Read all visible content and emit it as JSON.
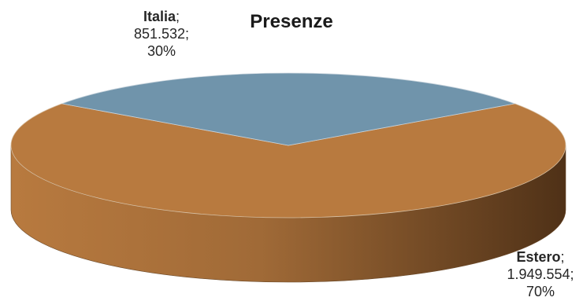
{
  "chart_data": {
    "type": "pie",
    "title": "Presenze",
    "slices": [
      {
        "name": "Italia",
        "value": "851.532",
        "percent": "30%",
        "share": 0.304,
        "color": "#7094ab"
      },
      {
        "name": "Estero",
        "value": "1.949.554",
        "percent": "70%",
        "share": 0.696,
        "color": "#b87a3f"
      }
    ],
    "side_colors": {
      "light": "#b87a3f",
      "dark": "#4f3117"
    }
  }
}
